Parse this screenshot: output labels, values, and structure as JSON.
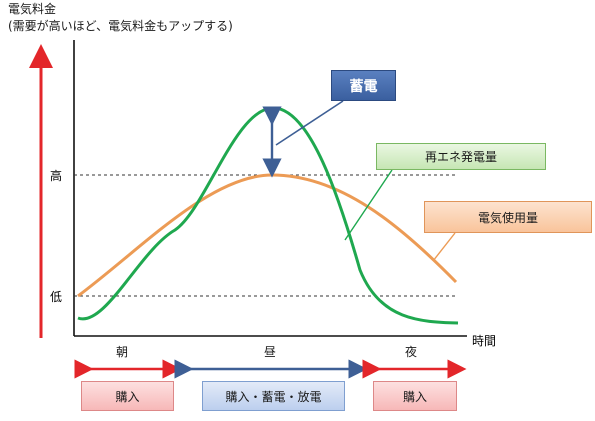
{
  "title": {
    "line1": "電気料金",
    "line2": "(需要が高いほど、電気料金もアップする)"
  },
  "axis": {
    "y_high": "高",
    "y_low": "低",
    "x_label": "時間"
  },
  "periods": {
    "morning": "朝",
    "noon": "昼",
    "night": "夜"
  },
  "actions": {
    "morning": "購入",
    "noon": "購入・蓄電・放電",
    "night": "購入"
  },
  "callouts": {
    "storage": "蓄電",
    "renewable": "再エネ発電量",
    "usage": "電気使用量"
  },
  "colors": {
    "price_arrow": "#e3262a",
    "renewable_curve": "#1fa84f",
    "usage_curve": "#ec9b55",
    "storage_arrow": "#3e5f95",
    "period_arrow_red": "#e3262a",
    "period_arrow_blue": "#3e5f95"
  }
}
